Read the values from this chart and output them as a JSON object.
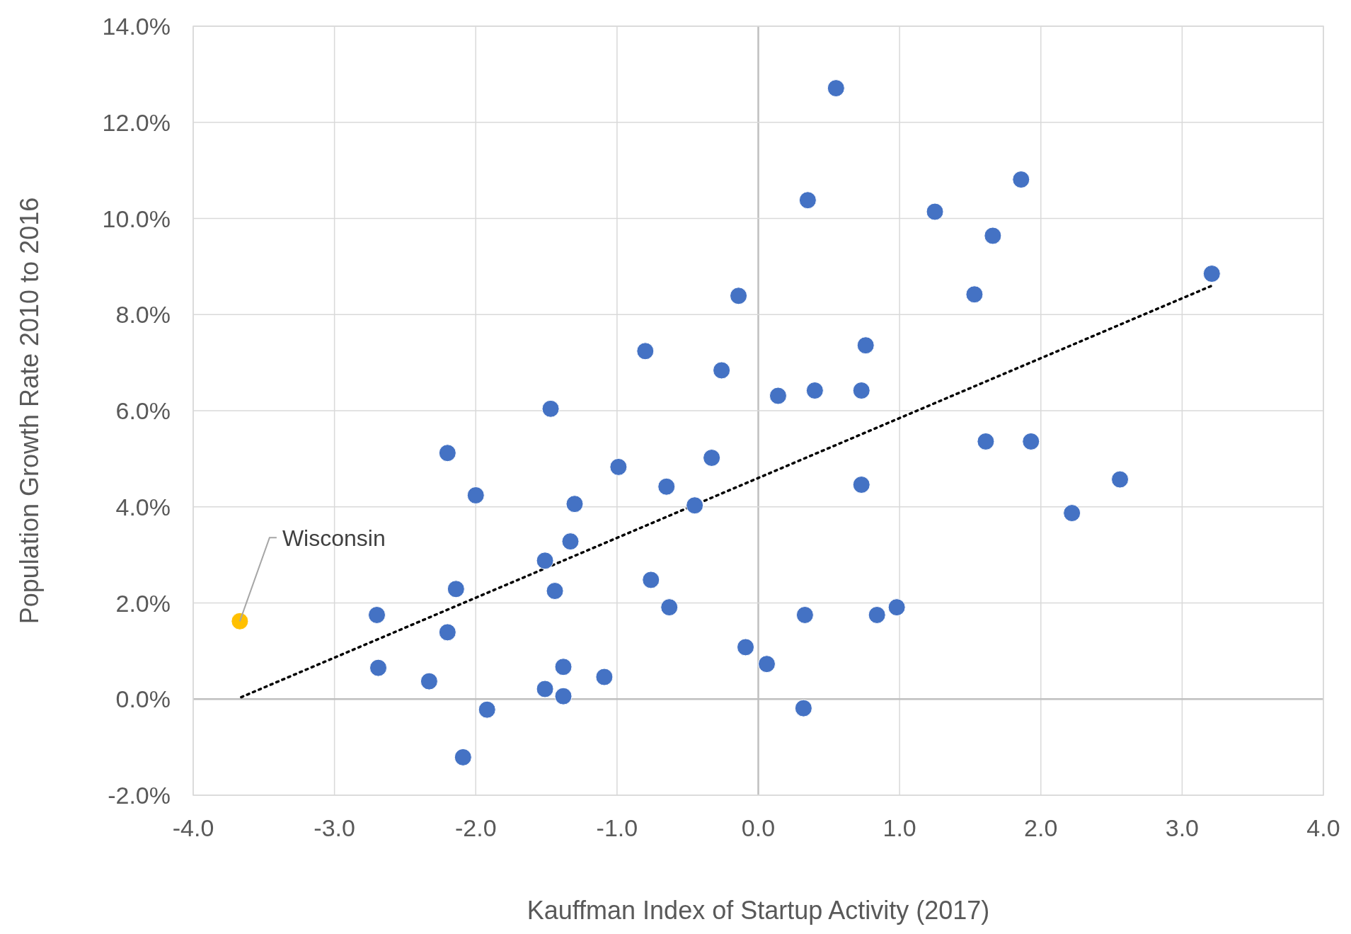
{
  "chart_data": {
    "type": "scatter",
    "xlabel": "Kauffman Index of Startup Activity (2017)",
    "ylabel": "Population Growth Rate 2010 to 2016",
    "xlim": [
      -4,
      4
    ],
    "ylim": [
      -2,
      14
    ],
    "xticks": [
      {
        "value": -4,
        "label": "-4.0"
      },
      {
        "value": -3,
        "label": "-3.0"
      },
      {
        "value": -2,
        "label": "-2.0"
      },
      {
        "value": -1,
        "label": "-1.0"
      },
      {
        "value": 0,
        "label": "0.0"
      },
      {
        "value": 1,
        "label": "1.0"
      },
      {
        "value": 2,
        "label": "2.0"
      },
      {
        "value": 3,
        "label": "3.0"
      },
      {
        "value": 4,
        "label": "4.0"
      }
    ],
    "yticks": [
      {
        "value": -2,
        "label": "-2.0%"
      },
      {
        "value": 0,
        "label": "0.0%"
      },
      {
        "value": 2,
        "label": "2.0%"
      },
      {
        "value": 4,
        "label": "4.0%"
      },
      {
        "value": 6,
        "label": "6.0%"
      },
      {
        "value": 8,
        "label": "8.0%"
      },
      {
        "value": 10,
        "label": "10.0%"
      },
      {
        "value": 12,
        "label": "12.0%"
      },
      {
        "value": 14,
        "label": "14.0%"
      }
    ],
    "grid": true,
    "marker": "circle",
    "annotations": [
      {
        "text": "Wisconsin",
        "x": -3.67,
        "y": 1.62
      }
    ],
    "series": [
      {
        "type": "scatter",
        "x": [
          -3.67,
          -2.7,
          -2.69,
          -2.33,
          -2.2,
          -2.14,
          -2.2,
          -2.0,
          -2.09,
          -1.92,
          -1.47,
          -1.51,
          -1.44,
          -1.51,
          -1.38,
          -1.38,
          -1.33,
          -1.3,
          -0.99,
          -1.09,
          -0.8,
          -0.76,
          -0.65,
          -0.63,
          -0.45,
          -0.33,
          -0.26,
          -0.14,
          -0.09,
          0.06,
          0.14,
          0.32,
          0.33,
          0.35,
          0.4,
          0.55,
          0.73,
          0.73,
          0.76,
          0.84,
          0.98,
          1.25,
          1.53,
          1.61,
          1.66,
          1.86,
          1.93,
          2.22,
          2.56,
          3.21
        ],
        "values": [
          1.62,
          1.75,
          0.65,
          0.37,
          5.12,
          2.29,
          1.39,
          4.24,
          -1.21,
          -0.22,
          6.04,
          2.88,
          2.25,
          0.21,
          0.67,
          0.06,
          3.28,
          4.06,
          4.83,
          0.46,
          7.24,
          2.48,
          4.42,
          1.91,
          4.03,
          5.02,
          6.84,
          8.39,
          1.08,
          0.73,
          6.31,
          -0.19,
          1.75,
          10.38,
          6.42,
          12.71,
          6.42,
          4.46,
          7.36,
          1.75,
          1.91,
          10.14,
          8.42,
          5.36,
          9.64,
          10.81,
          5.36,
          3.87,
          4.57,
          8.85
        ],
        "colors": [
          "#ffc000",
          "#4472c4",
          "#4472c4",
          "#4472c4",
          "#4472c4",
          "#4472c4",
          "#4472c4",
          "#4472c4",
          "#4472c4",
          "#4472c4",
          "#4472c4",
          "#4472c4",
          "#4472c4",
          "#4472c4",
          "#4472c4",
          "#4472c4",
          "#4472c4",
          "#4472c4",
          "#4472c4",
          "#4472c4",
          "#4472c4",
          "#4472c4",
          "#4472c4",
          "#4472c4",
          "#4472c4",
          "#4472c4",
          "#4472c4",
          "#4472c4",
          "#4472c4",
          "#4472c4",
          "#4472c4",
          "#4472c4",
          "#4472c4",
          "#4472c4",
          "#4472c4",
          "#4472c4",
          "#4472c4",
          "#4472c4",
          "#4472c4",
          "#4472c4",
          "#4472c4",
          "#4472c4",
          "#4472c4",
          "#4472c4",
          "#4472c4",
          "#4472c4",
          "#4472c4",
          "#4472c4",
          "#4472c4",
          "#4472c4"
        ]
      },
      {
        "type": "line",
        "color": "#000000",
        "line_style": "dotted",
        "marker": "none",
        "x": [
          -3.66,
          3.21
        ],
        "values": [
          0.04,
          8.6
        ]
      }
    ]
  }
}
